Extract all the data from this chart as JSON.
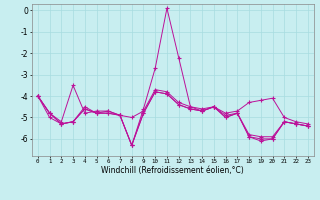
{
  "xlabel": "Windchill (Refroidissement éolien,°C)",
  "background_color": "#c8eef0",
  "grid_color": "#a8dce0",
  "line_color": "#bb1199",
  "xlim": [
    -0.5,
    23.5
  ],
  "ylim": [
    -6.8,
    0.3
  ],
  "xticks": [
    0,
    1,
    2,
    3,
    4,
    5,
    6,
    7,
    8,
    9,
    10,
    11,
    12,
    13,
    14,
    15,
    16,
    17,
    18,
    19,
    20,
    21,
    22,
    23
  ],
  "yticks": [
    0,
    -1,
    -2,
    -3,
    -4,
    -5,
    -6
  ],
  "series": [
    [
      -4.0,
      -4.8,
      -5.2,
      -3.5,
      -4.8,
      -4.7,
      -4.7,
      -4.9,
      -6.3,
      -4.6,
      -2.7,
      0.1,
      -2.2,
      -4.5,
      -4.6,
      -4.5,
      -4.8,
      -4.7,
      -4.3,
      -4.2,
      -4.1,
      -5.0,
      -5.2,
      -5.3
    ],
    [
      -4.0,
      -4.8,
      -5.3,
      -5.2,
      -4.5,
      -4.8,
      -4.8,
      -4.9,
      -6.3,
      -4.8,
      -3.8,
      -3.9,
      -4.4,
      -4.6,
      -4.7,
      -4.5,
      -5.0,
      -4.8,
      -5.9,
      -6.1,
      -6.0,
      -5.2,
      -5.3,
      -5.4
    ],
    [
      -4.0,
      -4.8,
      -5.3,
      -5.2,
      -4.6,
      -4.8,
      -4.8,
      -4.9,
      -6.3,
      -4.8,
      -3.8,
      -3.9,
      -4.4,
      -4.6,
      -4.7,
      -4.5,
      -5.0,
      -4.8,
      -5.9,
      -6.0,
      -6.0,
      -5.2,
      -5.3,
      -5.4
    ],
    [
      -4.0,
      -5.0,
      -5.3,
      -5.2,
      -4.6,
      -4.8,
      -4.7,
      -4.9,
      -5.0,
      -4.7,
      -3.7,
      -3.8,
      -4.3,
      -4.5,
      -4.7,
      -4.5,
      -4.9,
      -4.8,
      -5.8,
      -5.9,
      -5.9,
      -5.2,
      -5.3,
      -5.4
    ]
  ]
}
